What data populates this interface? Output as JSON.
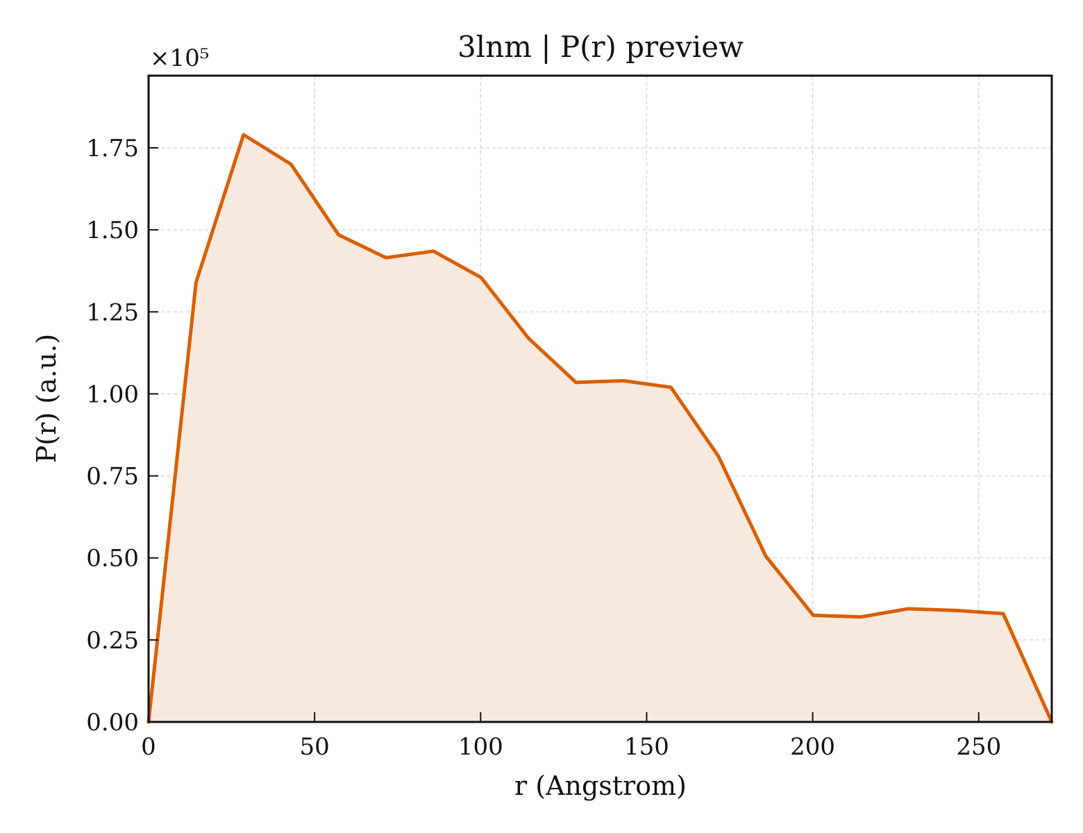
{
  "chart_data": {
    "type": "area",
    "title": "3lnm | P(r) preview",
    "xlabel": "r (Angstrom)",
    "ylabel": "P(r) (a.u.)",
    "y_multiplier_label": "×10⁵",
    "y_scale": 100000,
    "xlim": [
      0,
      272
    ],
    "ylim": [
      0,
      197000
    ],
    "x_ticks": [
      0,
      50,
      100,
      150,
      200,
      250
    ],
    "x_tick_labels": [
      "0",
      "50",
      "100",
      "150",
      "200",
      "250"
    ],
    "y_ticks": [
      0,
      25000,
      50000,
      75000,
      100000,
      125000,
      150000,
      175000
    ],
    "y_tick_labels": [
      "0.00",
      "0.25",
      "0.50",
      "0.75",
      "1.00",
      "1.25",
      "1.50",
      "1.75"
    ],
    "grid": true,
    "series": [
      {
        "color": "#d95f02",
        "fill_color": "#f8e9de",
        "x": [
          0,
          14.3,
          28.6,
          42.9,
          57.2,
          71.5,
          85.8,
          100.1,
          114.4,
          128.7,
          143.0,
          157.3,
          171.6,
          185.9,
          200.2,
          214.5,
          228.8,
          243.1,
          257.4,
          272
        ],
        "y": [
          0,
          134000,
          179000,
          170000,
          148500,
          141500,
          143500,
          135500,
          117000,
          103500,
          104000,
          102000,
          81000,
          50500,
          32500,
          32000,
          34500,
          34000,
          33000,
          0
        ]
      }
    ]
  }
}
